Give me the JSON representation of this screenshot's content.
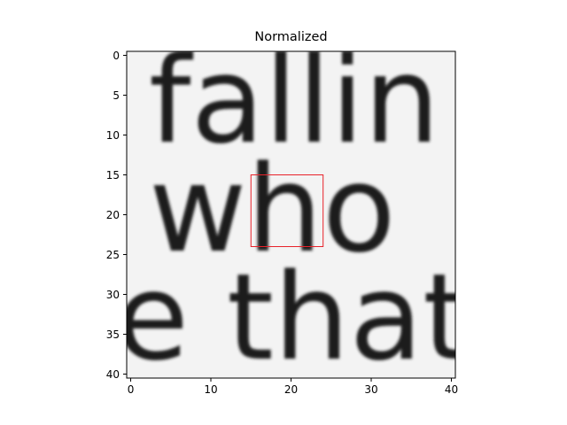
{
  "chart_data": {
    "type": "heatmap",
    "title": "Normalized",
    "colormap": "gray",
    "image_shape": [
      41,
      41
    ],
    "image_description": "grayscale scan of printed text: fallin / who / that",
    "xlim": [
      -0.5,
      40.5
    ],
    "ylim": [
      40.5,
      -0.5
    ],
    "x_ticks": [
      0,
      10,
      20,
      30,
      40
    ],
    "y_ticks": [
      0,
      5,
      10,
      15,
      20,
      25,
      30,
      35,
      40
    ],
    "highlight_box": {
      "x0": 15,
      "y0": 15,
      "x1": 24,
      "y1": 24,
      "color": "#e8222a"
    }
  }
}
